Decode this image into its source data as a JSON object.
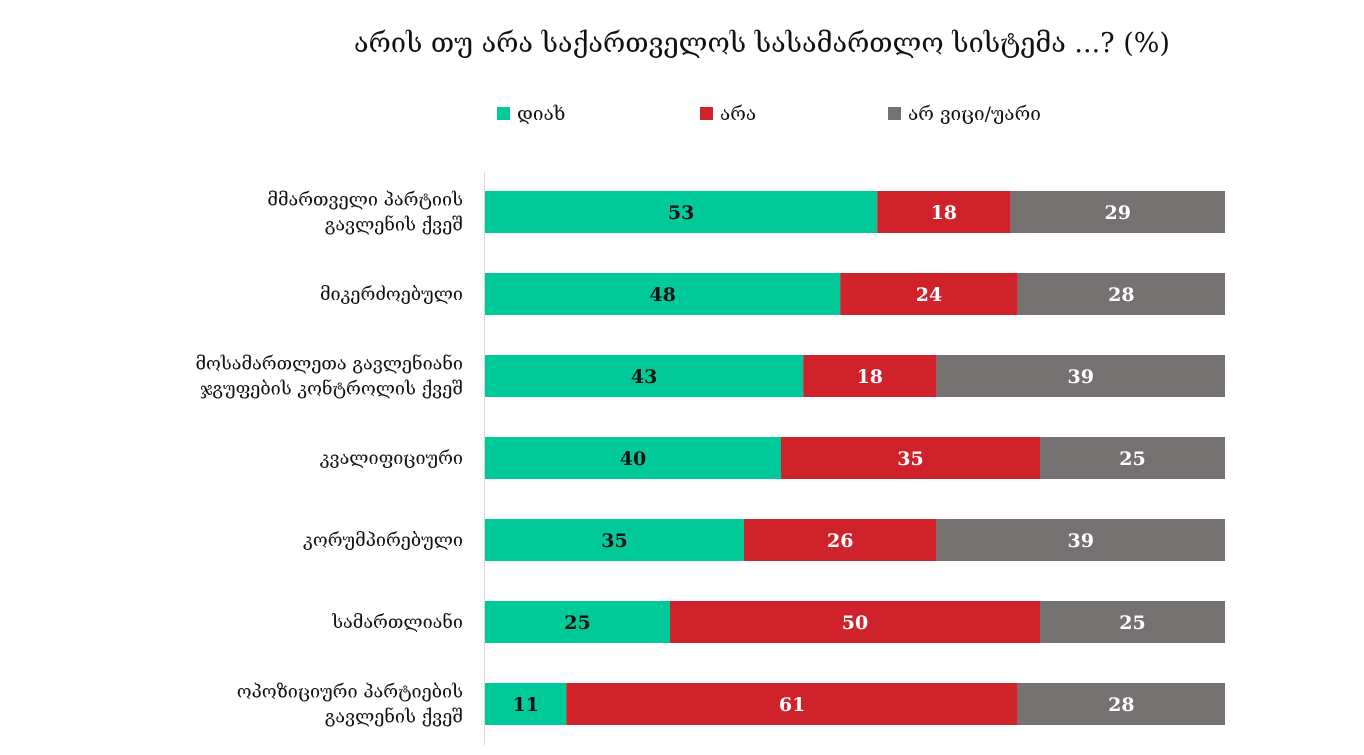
{
  "chart_data": {
    "type": "bar",
    "orientation": "horizontal",
    "stacked": true,
    "title": "არის თუ არა საქართველოს სასამართლო სისტემა ...? (%)",
    "legend_position": "top",
    "xlim": [
      0,
      100
    ],
    "grid": false,
    "categories": [
      [
        "მმართველი პარტიის",
        "გავლენის ქვეშ"
      ],
      [
        "მიკერძოებული"
      ],
      [
        "მოსამართლეთა გავლენიანი",
        "ჯგუფების კონტროლის ქვეშ"
      ],
      [
        "კვალიფიციური"
      ],
      [
        "კორუმპირებული"
      ],
      [
        "სამართლიანი"
      ],
      [
        "ოპოზიციური პარტიების",
        "გავლენის ქვეშ"
      ]
    ],
    "series": [
      {
        "name": "დიახ",
        "color": "#00C99A",
        "values": [
          53,
          48,
          43,
          40,
          35,
          25,
          11
        ]
      },
      {
        "name": "არა",
        "color": "#D0222A",
        "values": [
          18,
          24,
          18,
          35,
          26,
          50,
          61
        ]
      },
      {
        "name": "არ ვიცი/უარი",
        "color": "#767171",
        "values": [
          29,
          28,
          39,
          25,
          39,
          25,
          28
        ]
      }
    ]
  }
}
